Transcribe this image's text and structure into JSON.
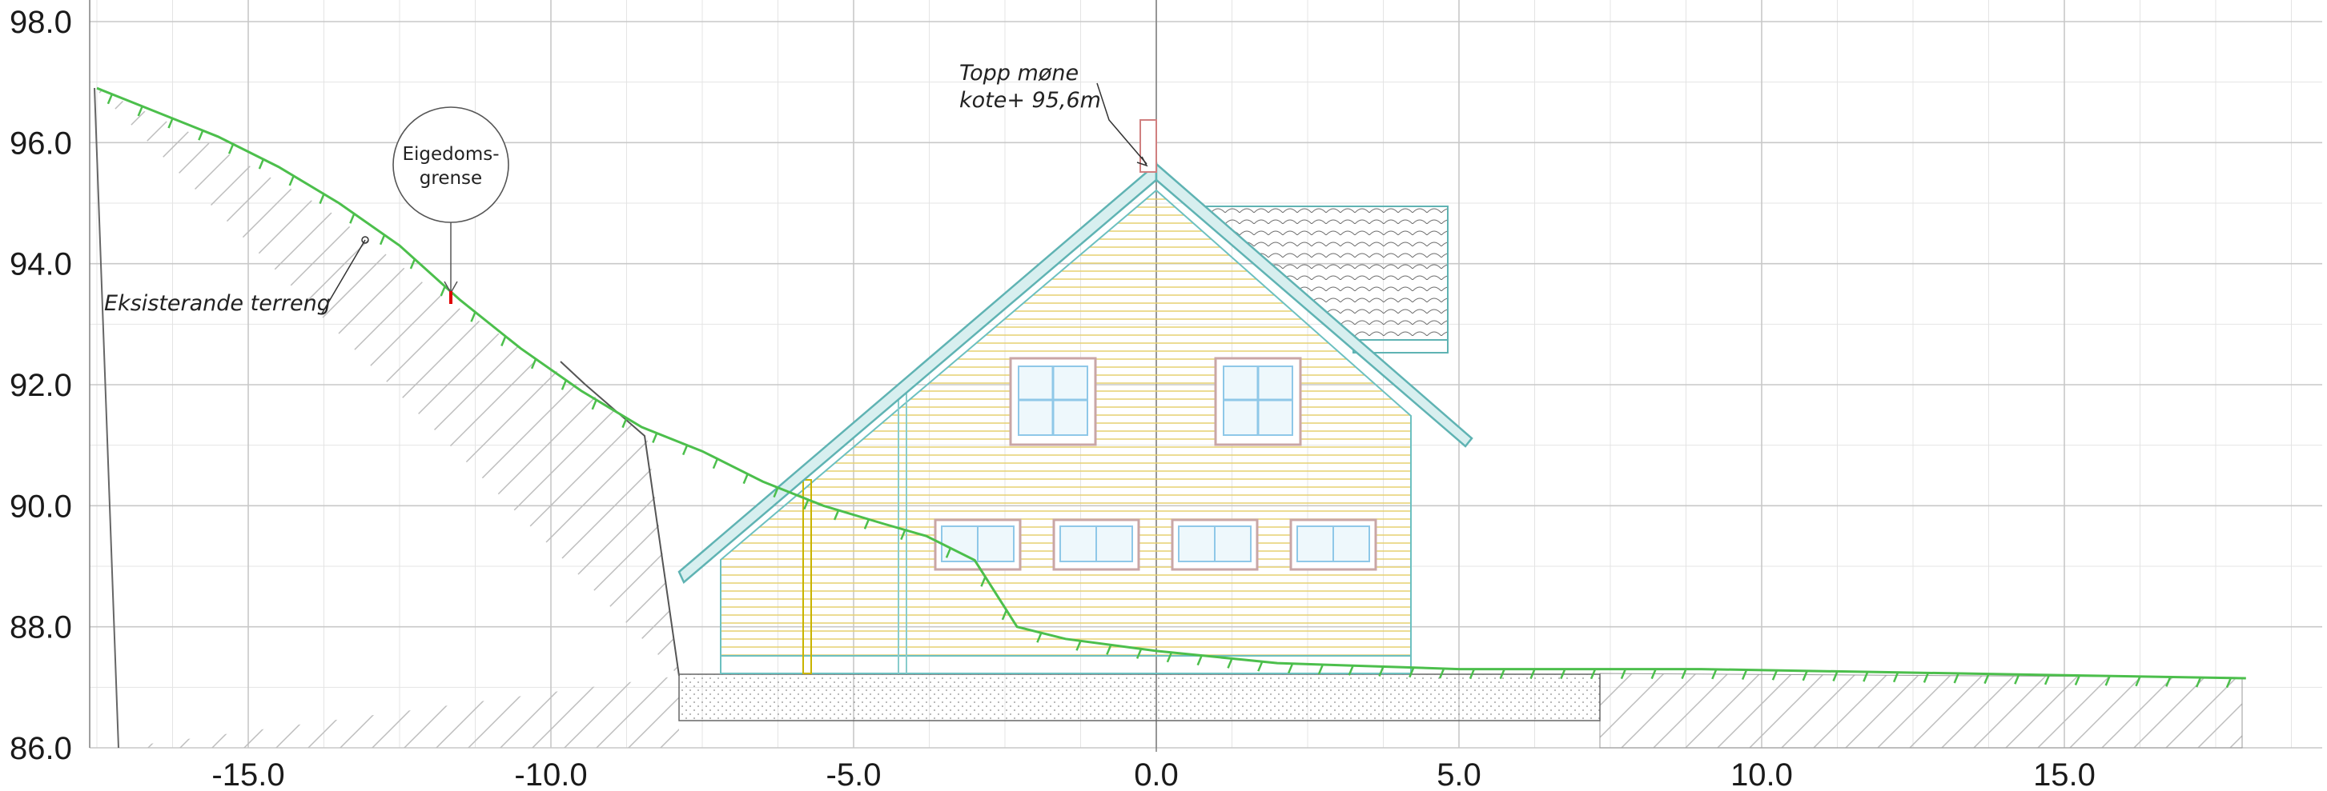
{
  "drawing": {
    "x_axis": {
      "min": -17.5,
      "max": 19.0,
      "ticks": [
        -15.0,
        -10.0,
        -5.0,
        0.0,
        5.0,
        10.0,
        15.0
      ],
      "tick_labels": [
        "-15.0",
        "-10.0",
        "-5.0",
        "0.0",
        "5.0",
        "10.0",
        "15.0"
      ]
    },
    "y_axis": {
      "min": 86.0,
      "max": 98.0,
      "ticks": [
        86.0,
        88.0,
        90.0,
        92.0,
        94.0,
        96.0,
        98.0
      ],
      "tick_labels": [
        "86.0",
        "88.0",
        "90.0",
        "92.0",
        "94.0",
        "96.0",
        "98.0"
      ]
    },
    "annotations": {
      "ridge_line1": "Topp møne",
      "ridge_line2": "kote+ 95,6m",
      "terrain_label": "Eksisterande terreng",
      "boundary_line1": "Eigedoms-",
      "boundary_line2": "grense"
    },
    "terrain_profile": [
      [
        -17.5,
        96.9
      ],
      [
        -16.5,
        96.5
      ],
      [
        -15.5,
        96.1
      ],
      [
        -14.5,
        95.6
      ],
      [
        -13.5,
        95.0
      ],
      [
        -12.5,
        94.3
      ],
      [
        -11.5,
        93.4
      ],
      [
        -10.5,
        92.6
      ],
      [
        -9.5,
        91.9
      ],
      [
        -8.5,
        91.3
      ],
      [
        -7.5,
        90.9
      ],
      [
        -6.5,
        90.4
      ],
      [
        -5.5,
        90.0
      ],
      [
        -4.5,
        89.7
      ],
      [
        -3.8,
        89.5
      ],
      [
        -3.0,
        89.1
      ],
      [
        -2.3,
        88.0
      ],
      [
        -1.5,
        87.8
      ],
      [
        0.0,
        87.6
      ],
      [
        2.0,
        87.4
      ],
      [
        5.0,
        87.3
      ],
      [
        9.0,
        87.3
      ],
      [
        12.0,
        87.25
      ],
      [
        15.0,
        87.2
      ],
      [
        18.0,
        87.15
      ]
    ],
    "colors": {
      "grid_major": "#c8c8c8",
      "grid_minor": "#e4e4e4",
      "terrain": "#4cbf4c",
      "roof": "#5fb3b3",
      "cladding": "#e3cf5a",
      "window_frame": "#c9a6a6",
      "window_glass": "#8fc8e8",
      "boundary_mark": "#e00000",
      "hatch": "#bdbdbd"
    }
  }
}
